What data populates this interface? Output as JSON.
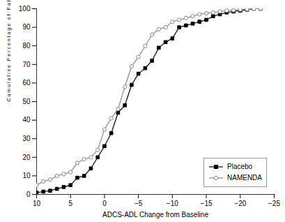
{
  "chart_data": {
    "type": "line",
    "x": [
      10,
      9,
      8,
      7,
      6,
      5,
      4,
      3,
      2,
      1,
      0,
      -1,
      -2,
      -3,
      -4,
      -5,
      -6,
      -7,
      -8,
      -9,
      -10,
      -11,
      -12,
      -13,
      -14,
      -15,
      -16,
      -17,
      -18,
      -19,
      -20,
      -21,
      -22,
      -23
    ],
    "series": [
      {
        "name": "Placebo",
        "color": "#000000",
        "marker": "square",
        "values": [
          1,
          1.5,
          2,
          3,
          4,
          5,
          9,
          10,
          14,
          20,
          26,
          33,
          44,
          48,
          59,
          65,
          68,
          72,
          79,
          82,
          84,
          90,
          91,
          92,
          93,
          94,
          96,
          97,
          98,
          98.5,
          99,
          99.5,
          100,
          100
        ]
      },
      {
        "name": "NAMENDA",
        "color": "#888888",
        "marker": "circle",
        "values": [
          5,
          7,
          8,
          10,
          11,
          12,
          17,
          19,
          20,
          24,
          35,
          41,
          46,
          58,
          69,
          74,
          80,
          86,
          89,
          90,
          93,
          94,
          95,
          96,
          97,
          97.5,
          98,
          98.5,
          99,
          99.2,
          99.5,
          99.7,
          100,
          100
        ]
      }
    ],
    "xlabel": "ADCS-ADL Change from Baseline",
    "ylabel": "C u m u l a t i v e   P e r c e n t a g e   o f   P a t i e n t s",
    "xlim": [
      10,
      -25
    ],
    "ylim": [
      0,
      100
    ],
    "xticks": [
      10,
      5,
      0,
      -5,
      -10,
      -15,
      -20,
      -25
    ],
    "yticks": [
      0,
      10,
      20,
      30,
      40,
      50,
      60,
      70,
      80,
      90,
      100
    ],
    "legend": "lower right",
    "grid": false
  }
}
